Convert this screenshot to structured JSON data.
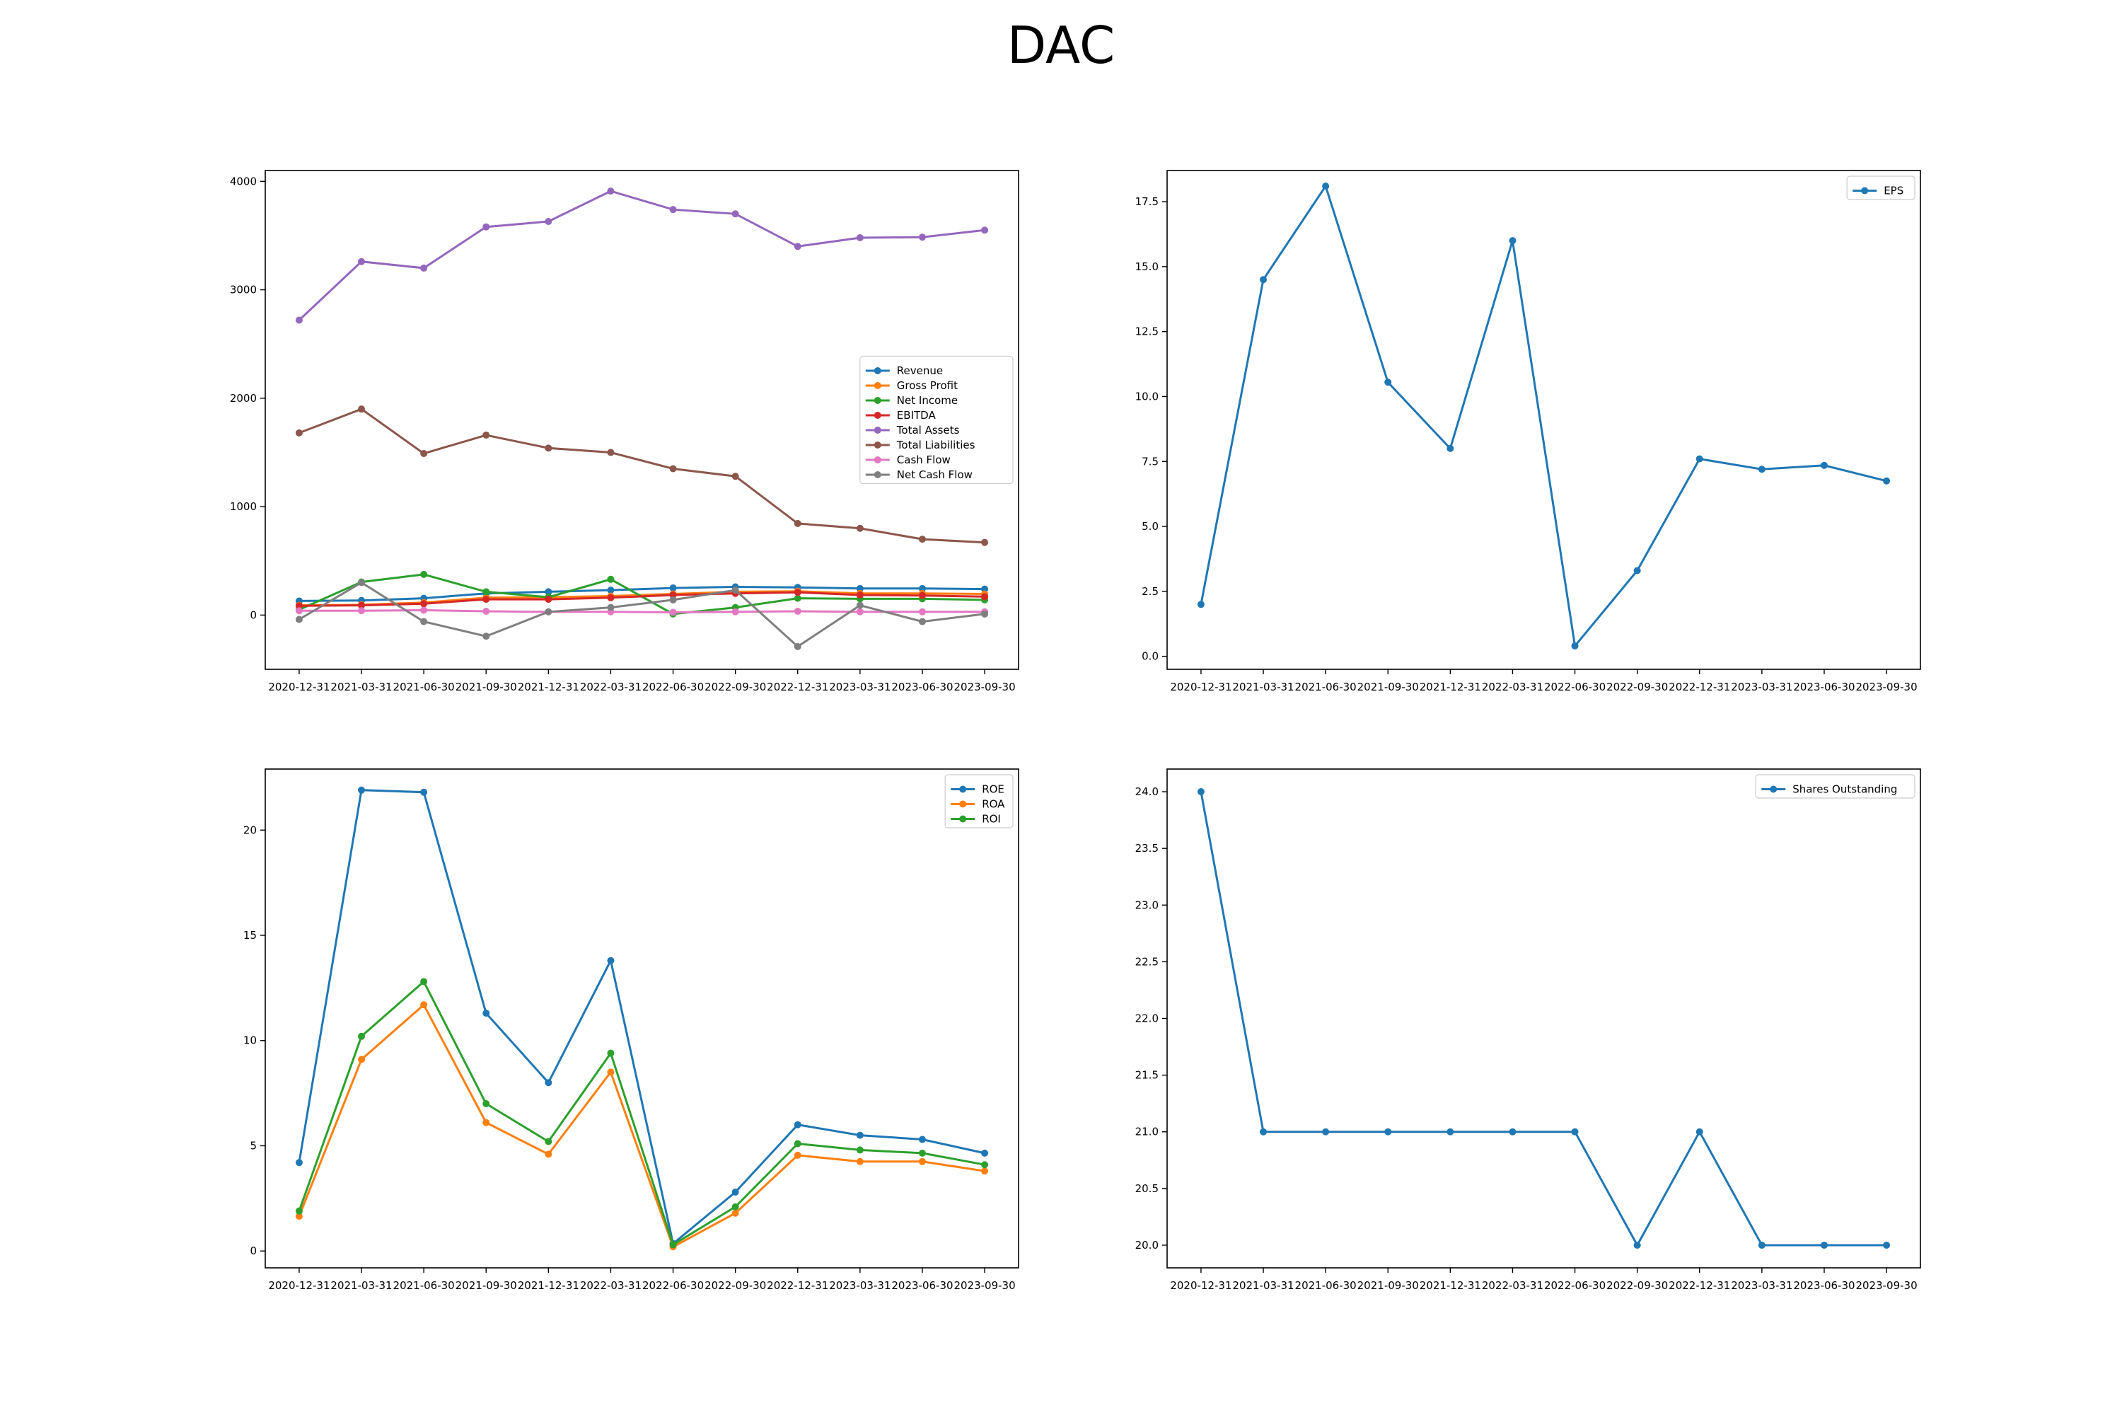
{
  "figure": {
    "title": "DAC"
  },
  "chart_data": [
    {
      "type": "line",
      "x": [
        "2020-12-31",
        "2021-03-31",
        "2021-06-30",
        "2021-09-30",
        "2021-12-31",
        "2022-03-31",
        "2022-06-30",
        "2022-09-30",
        "2022-12-31",
        "2023-03-31",
        "2023-06-30",
        "2023-09-30"
      ],
      "ylim": [
        -500,
        4100
      ],
      "yticks": [
        0,
        1000,
        2000,
        3000,
        4000
      ],
      "ytick_labels": [
        "0",
        "1000",
        "2000",
        "3000",
        "4000"
      ],
      "legend": "center-right",
      "series": [
        {
          "name": "Revenue",
          "color": "#1f77b4",
          "values": [
            130,
            135,
            155,
            200,
            215,
            230,
            250,
            260,
            255,
            245,
            245,
            240
          ]
        },
        {
          "name": "Gross Profit",
          "color": "#ff7f0e",
          "values": [
            90,
            95,
            115,
            160,
            165,
            175,
            195,
            215,
            220,
            200,
            200,
            195
          ]
        },
        {
          "name": "Net Income",
          "color": "#2ca02c",
          "values": [
            50,
            305,
            375,
            215,
            165,
            330,
            10,
            70,
            155,
            150,
            150,
            140
          ]
        },
        {
          "name": "EBITDA",
          "color": "#d62728",
          "values": [
            85,
            90,
            105,
            145,
            145,
            160,
            185,
            200,
            210,
            185,
            180,
            170
          ]
        },
        {
          "name": "Total Assets",
          "color": "#9467bd",
          "values": [
            2720,
            3260,
            3200,
            3580,
            3630,
            3910,
            3740,
            3700,
            3400,
            3480,
            3485,
            3550
          ]
        },
        {
          "name": "Total Liabilities",
          "color": "#8c564b",
          "values": [
            1680,
            1900,
            1490,
            1660,
            1540,
            1500,
            1350,
            1280,
            845,
            800,
            700,
            670
          ]
        },
        {
          "name": "Cash Flow",
          "color": "#e377c2",
          "values": [
            40,
            40,
            45,
            35,
            30,
            30,
            25,
            30,
            35,
            30,
            30,
            30
          ]
        },
        {
          "name": "Net Cash Flow",
          "color": "#7f7f7f",
          "values": [
            -40,
            300,
            -60,
            -195,
            30,
            70,
            140,
            230,
            -290,
            90,
            -60,
            10
          ]
        }
      ]
    },
    {
      "type": "line",
      "x": [
        "2020-12-31",
        "2021-03-31",
        "2021-06-30",
        "2021-09-30",
        "2021-12-31",
        "2022-03-31",
        "2022-06-30",
        "2022-09-30",
        "2022-12-31",
        "2023-03-31",
        "2023-06-30",
        "2023-09-30"
      ],
      "ylim": [
        -0.5,
        18.7
      ],
      "yticks": [
        0,
        2.5,
        5,
        7.5,
        10,
        12.5,
        15,
        17.5
      ],
      "ytick_labels": [
        "0.0",
        "2.5",
        "5.0",
        "7.5",
        "10.0",
        "12.5",
        "15.0",
        "17.5"
      ],
      "legend": "top-right",
      "series": [
        {
          "name": "EPS",
          "color": "#1f77b4",
          "values": [
            2.0,
            14.5,
            18.1,
            10.55,
            8.0,
            16.0,
            0.4,
            3.3,
            7.6,
            7.2,
            7.35,
            6.75
          ]
        }
      ]
    },
    {
      "type": "line",
      "x": [
        "2020-12-31",
        "2021-03-31",
        "2021-06-30",
        "2021-09-30",
        "2021-12-31",
        "2022-03-31",
        "2022-06-30",
        "2022-09-30",
        "2022-12-31",
        "2023-03-31",
        "2023-06-30",
        "2023-09-30"
      ],
      "ylim": [
        -0.8,
        22.9
      ],
      "yticks": [
        0,
        5,
        10,
        15,
        20
      ],
      "ytick_labels": [
        "0",
        "5",
        "10",
        "15",
        "20"
      ],
      "legend": "top-right",
      "series": [
        {
          "name": "ROE",
          "color": "#1f77b4",
          "values": [
            4.2,
            21.9,
            21.8,
            11.3,
            8.0,
            13.8,
            0.35,
            2.8,
            6.0,
            5.5,
            5.3,
            4.65
          ]
        },
        {
          "name": "ROA",
          "color": "#ff7f0e",
          "values": [
            1.65,
            9.1,
            11.7,
            6.1,
            4.6,
            8.5,
            0.2,
            1.8,
            4.55,
            4.25,
            4.25,
            3.8
          ]
        },
        {
          "name": "ROI",
          "color": "#2ca02c",
          "values": [
            1.9,
            10.2,
            12.8,
            7.0,
            5.2,
            9.4,
            0.3,
            2.1,
            5.1,
            4.8,
            4.65,
            4.1
          ]
        }
      ]
    },
    {
      "type": "line",
      "x": [
        "2020-12-31",
        "2021-03-31",
        "2021-06-30",
        "2021-09-30",
        "2021-12-31",
        "2022-03-31",
        "2022-06-30",
        "2022-09-30",
        "2022-12-31",
        "2023-03-31",
        "2023-06-30",
        "2023-09-30"
      ],
      "ylim": [
        19.8,
        24.2
      ],
      "yticks": [
        20,
        20.5,
        21,
        21.5,
        22,
        22.5,
        23,
        23.5,
        24
      ],
      "ytick_labels": [
        "20.0",
        "20.5",
        "21.0",
        "21.5",
        "22.0",
        "22.5",
        "23.0",
        "23.5",
        "24.0"
      ],
      "legend": "top-right",
      "series": [
        {
          "name": "Shares Outstanding",
          "color": "#1f77b4",
          "values": [
            24,
            21,
            21,
            21,
            21,
            21,
            21,
            20,
            21,
            20,
            20,
            20
          ]
        }
      ]
    }
  ]
}
